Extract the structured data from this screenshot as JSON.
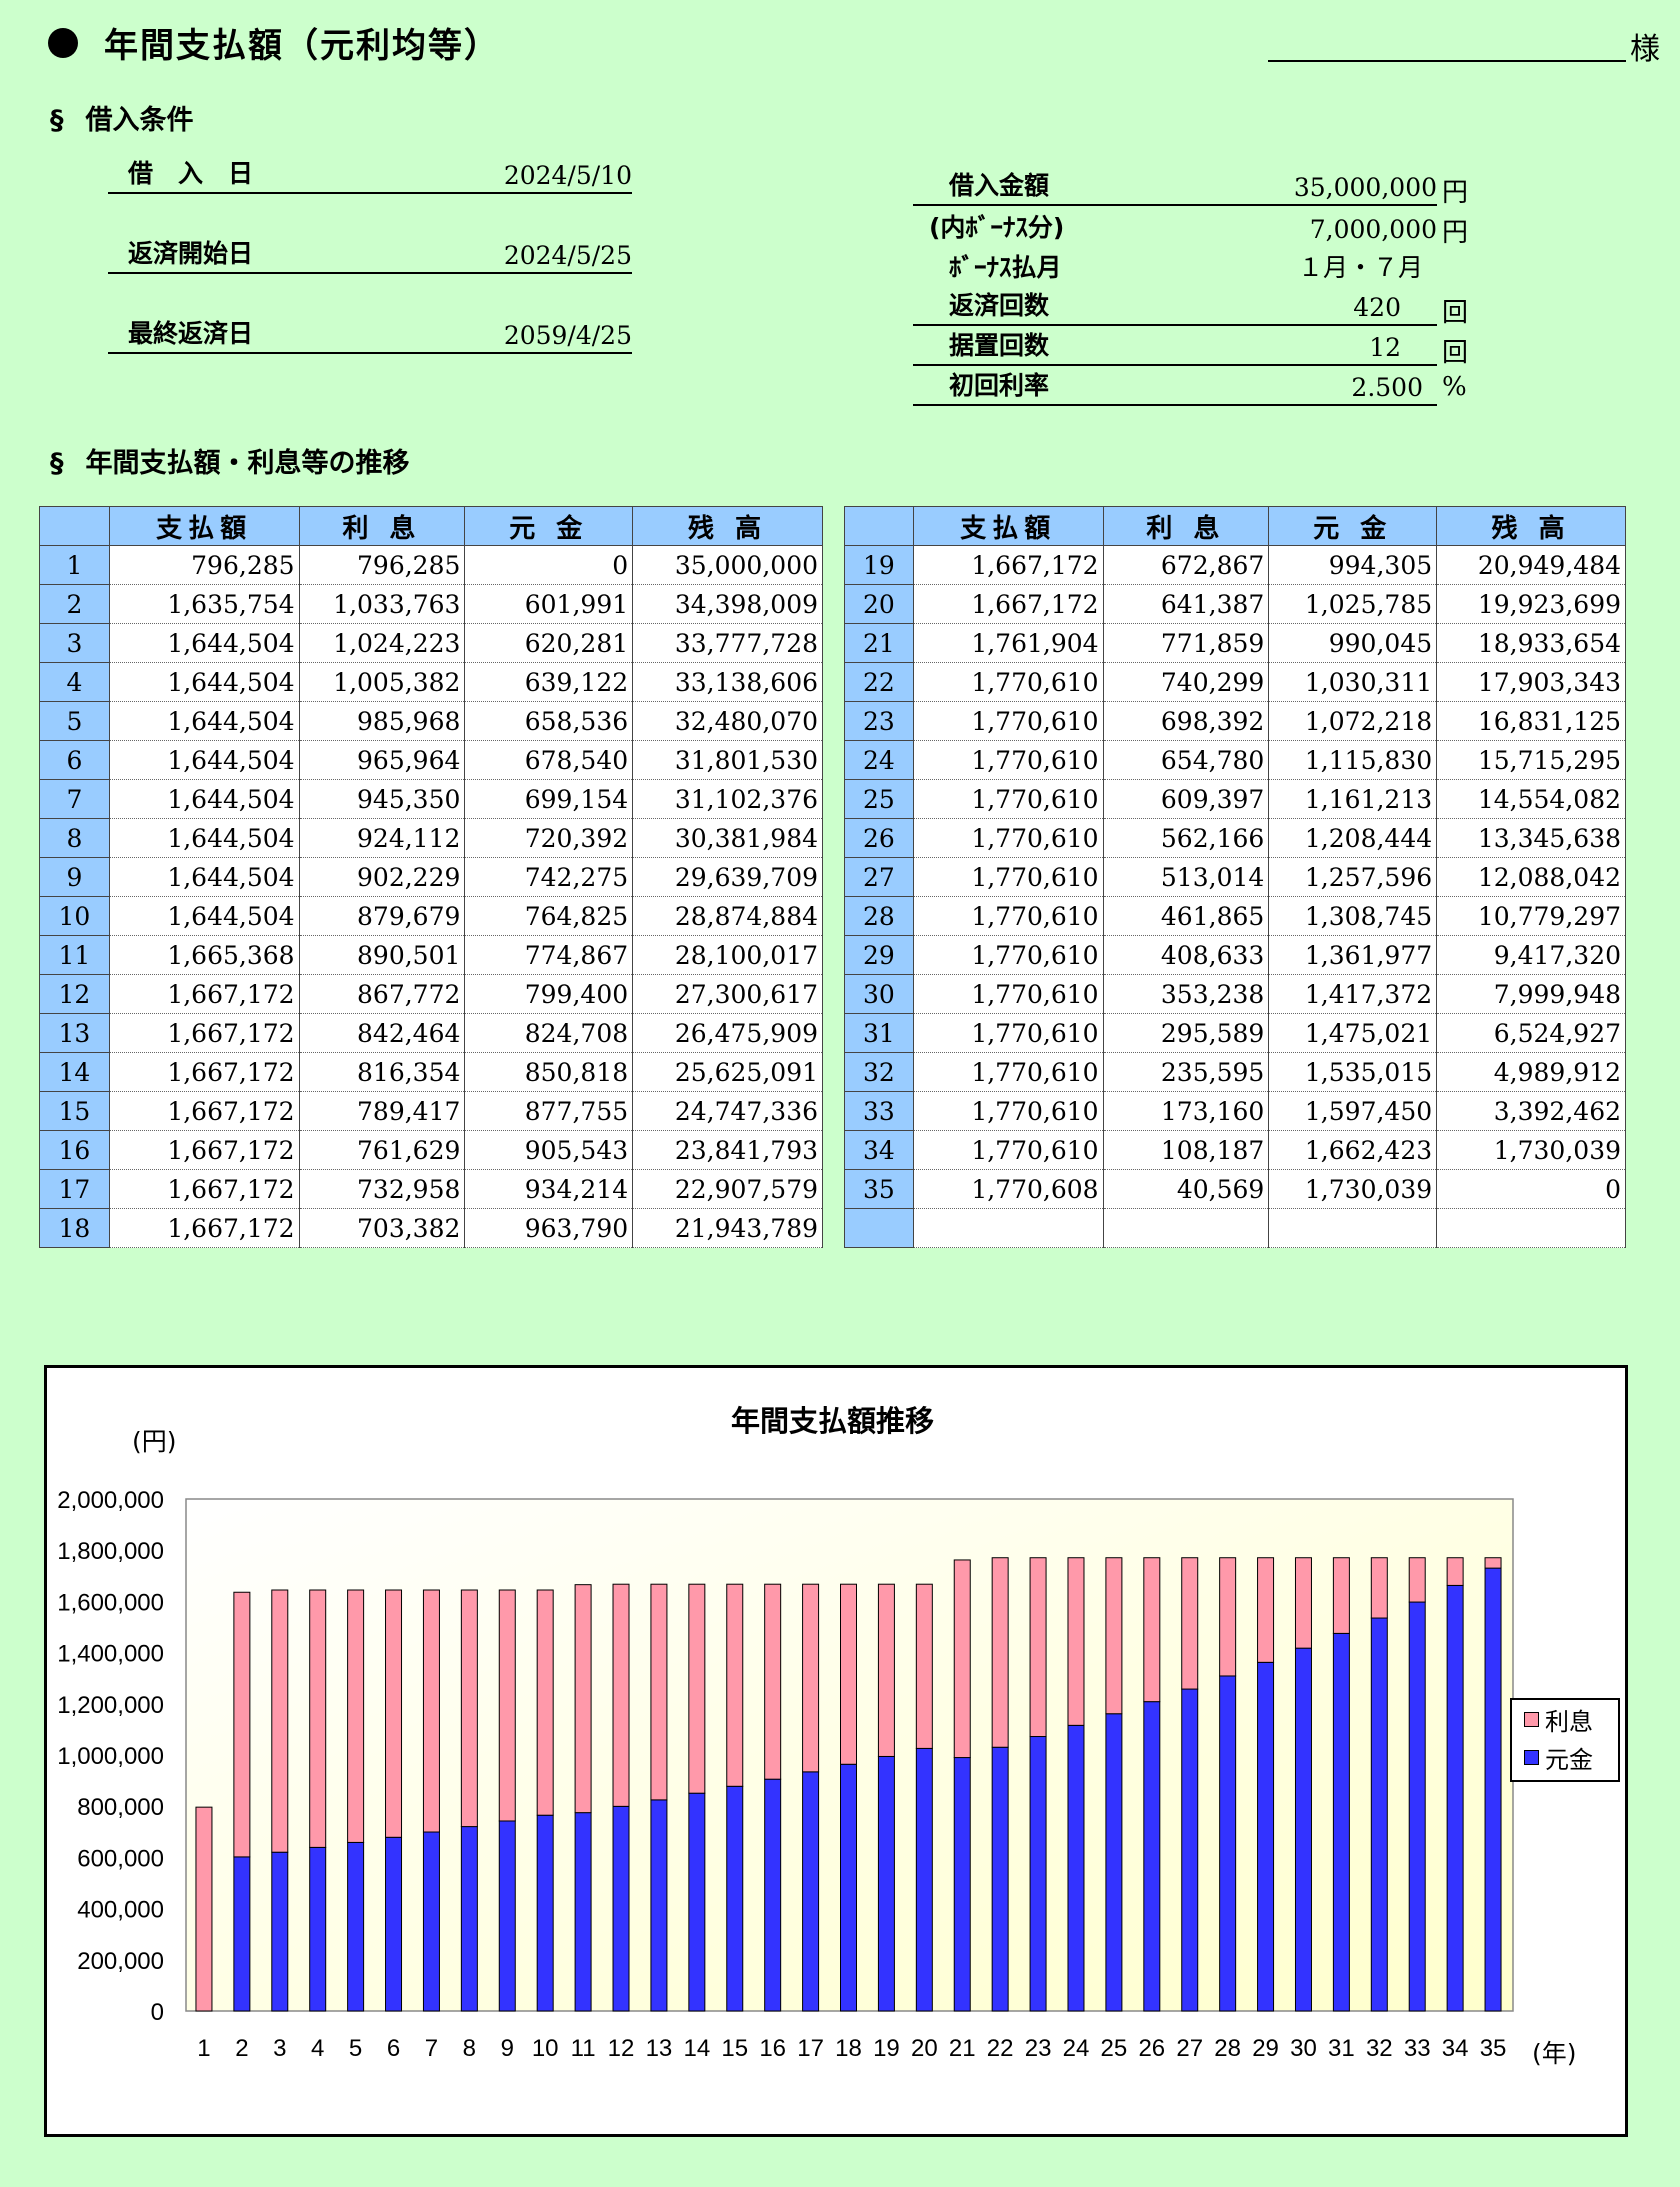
{
  "header": {
    "title": "年間支払額（元利均等）",
    "honorific": "様"
  },
  "conditions": {
    "section_title": "借入条件",
    "section_mark": "§",
    "left": [
      {
        "label": "借　入　日",
        "value": "2024/5/10"
      },
      {
        "label": "返済開始日",
        "value": "2024/5/25"
      },
      {
        "label": "最終返済日",
        "value": "2059/4/25"
      }
    ],
    "right": [
      {
        "label": "借入金額",
        "value": "35,000,000",
        "unit": "円"
      },
      {
        "label": "(内ﾎﾞｰﾅｽ分)",
        "value": "7,000,000",
        "unit": "円"
      },
      {
        "label": "ﾎﾞｰﾅｽ払月",
        "value": "１月・７月",
        "unit": ""
      },
      {
        "label": "返済回数",
        "value": "420",
        "unit": "回"
      },
      {
        "label": "据置回数",
        "value": "12",
        "unit": "回"
      },
      {
        "label": "初回利率",
        "value": "2.500",
        "unit": "%"
      }
    ]
  },
  "schedule": {
    "section_title": "年間支払額・利息等の推移",
    "section_mark": "§",
    "headers": [
      "支払額",
      "利 息",
      "元 金",
      "残 高"
    ],
    "left_rows": [
      [
        "1",
        "796,285",
        "796,285",
        "0",
        "35,000,000"
      ],
      [
        "2",
        "1,635,754",
        "1,033,763",
        "601,991",
        "34,398,009"
      ],
      [
        "3",
        "1,644,504",
        "1,024,223",
        "620,281",
        "33,777,728"
      ],
      [
        "4",
        "1,644,504",
        "1,005,382",
        "639,122",
        "33,138,606"
      ],
      [
        "5",
        "1,644,504",
        "985,968",
        "658,536",
        "32,480,070"
      ],
      [
        "6",
        "1,644,504",
        "965,964",
        "678,540",
        "31,801,530"
      ],
      [
        "7",
        "1,644,504",
        "945,350",
        "699,154",
        "31,102,376"
      ],
      [
        "8",
        "1,644,504",
        "924,112",
        "720,392",
        "30,381,984"
      ],
      [
        "9",
        "1,644,504",
        "902,229",
        "742,275",
        "29,639,709"
      ],
      [
        "10",
        "1,644,504",
        "879,679",
        "764,825",
        "28,874,884"
      ],
      [
        "11",
        "1,665,368",
        "890,501",
        "774,867",
        "28,100,017"
      ],
      [
        "12",
        "1,667,172",
        "867,772",
        "799,400",
        "27,300,617"
      ],
      [
        "13",
        "1,667,172",
        "842,464",
        "824,708",
        "26,475,909"
      ],
      [
        "14",
        "1,667,172",
        "816,354",
        "850,818",
        "25,625,091"
      ],
      [
        "15",
        "1,667,172",
        "789,417",
        "877,755",
        "24,747,336"
      ],
      [
        "16",
        "1,667,172",
        "761,629",
        "905,543",
        "23,841,793"
      ],
      [
        "17",
        "1,667,172",
        "732,958",
        "934,214",
        "22,907,579"
      ],
      [
        "18",
        "1,667,172",
        "703,382",
        "963,790",
        "21,943,789"
      ]
    ],
    "right_rows": [
      [
        "19",
        "1,667,172",
        "672,867",
        "994,305",
        "20,949,484"
      ],
      [
        "20",
        "1,667,172",
        "641,387",
        "1,025,785",
        "19,923,699"
      ],
      [
        "21",
        "1,761,904",
        "771,859",
        "990,045",
        "18,933,654"
      ],
      [
        "22",
        "1,770,610",
        "740,299",
        "1,030,311",
        "17,903,343"
      ],
      [
        "23",
        "1,770,610",
        "698,392",
        "1,072,218",
        "16,831,125"
      ],
      [
        "24",
        "1,770,610",
        "654,780",
        "1,115,830",
        "15,715,295"
      ],
      [
        "25",
        "1,770,610",
        "609,397",
        "1,161,213",
        "14,554,082"
      ],
      [
        "26",
        "1,770,610",
        "562,166",
        "1,208,444",
        "13,345,638"
      ],
      [
        "27",
        "1,770,610",
        "513,014",
        "1,257,596",
        "12,088,042"
      ],
      [
        "28",
        "1,770,610",
        "461,865",
        "1,308,745",
        "10,779,297"
      ],
      [
        "29",
        "1,770,610",
        "408,633",
        "1,361,977",
        "9,417,320"
      ],
      [
        "30",
        "1,770,610",
        "353,238",
        "1,417,372",
        "7,999,948"
      ],
      [
        "31",
        "1,770,610",
        "295,589",
        "1,475,021",
        "6,524,927"
      ],
      [
        "32",
        "1,770,610",
        "235,595",
        "1,535,015",
        "4,989,912"
      ],
      [
        "33",
        "1,770,610",
        "173,160",
        "1,597,450",
        "3,392,462"
      ],
      [
        "34",
        "1,770,610",
        "108,187",
        "1,662,423",
        "1,730,039"
      ],
      [
        "35",
        "1,770,608",
        "40,569",
        "1,730,039",
        "0"
      ],
      [
        "",
        "",
        "",
        "",
        ""
      ]
    ]
  },
  "chart_data": {
    "type": "bar",
    "stacked": true,
    "title": "年間支払額推移",
    "ylabel": "(円)",
    "xlabel": "(年)",
    "ylim": [
      0,
      2000000
    ],
    "yticks": [
      "0",
      "200,000",
      "400,000",
      "600,000",
      "800,000",
      "1,000,000",
      "1,200,000",
      "1,400,000",
      "1,600,000",
      "1,800,000",
      "2,000,000"
    ],
    "categories": [
      "1",
      "2",
      "3",
      "4",
      "5",
      "6",
      "7",
      "8",
      "9",
      "10",
      "11",
      "12",
      "13",
      "14",
      "15",
      "16",
      "17",
      "18",
      "19",
      "20",
      "21",
      "22",
      "23",
      "24",
      "25",
      "26",
      "27",
      "28",
      "29",
      "30",
      "31",
      "32",
      "33",
      "34",
      "35"
    ],
    "series": [
      {
        "name": "元金",
        "color": "#3333ff",
        "values": [
          0,
          601991,
          620281,
          639122,
          658536,
          678540,
          699154,
          720392,
          742275,
          764825,
          774867,
          799400,
          824708,
          850818,
          877755,
          905543,
          934214,
          963790,
          994305,
          1025785,
          990045,
          1030311,
          1072218,
          1115830,
          1161213,
          1208444,
          1257596,
          1308745,
          1361977,
          1417372,
          1475021,
          1535015,
          1597450,
          1662423,
          1730039
        ]
      },
      {
        "name": "利息",
        "color": "#ff99aa",
        "values": [
          796285,
          1033763,
          1024223,
          1005382,
          985968,
          965964,
          945350,
          924112,
          902229,
          879679,
          890501,
          867772,
          842464,
          816354,
          789417,
          761629,
          732958,
          703382,
          672867,
          641387,
          771859,
          740299,
          698392,
          654780,
          609397,
          562166,
          513014,
          461865,
          408633,
          353238,
          295589,
          235595,
          173160,
          108187,
          40569
        ]
      }
    ],
    "legend": [
      "利息",
      "元金"
    ],
    "legend_position": "right"
  }
}
